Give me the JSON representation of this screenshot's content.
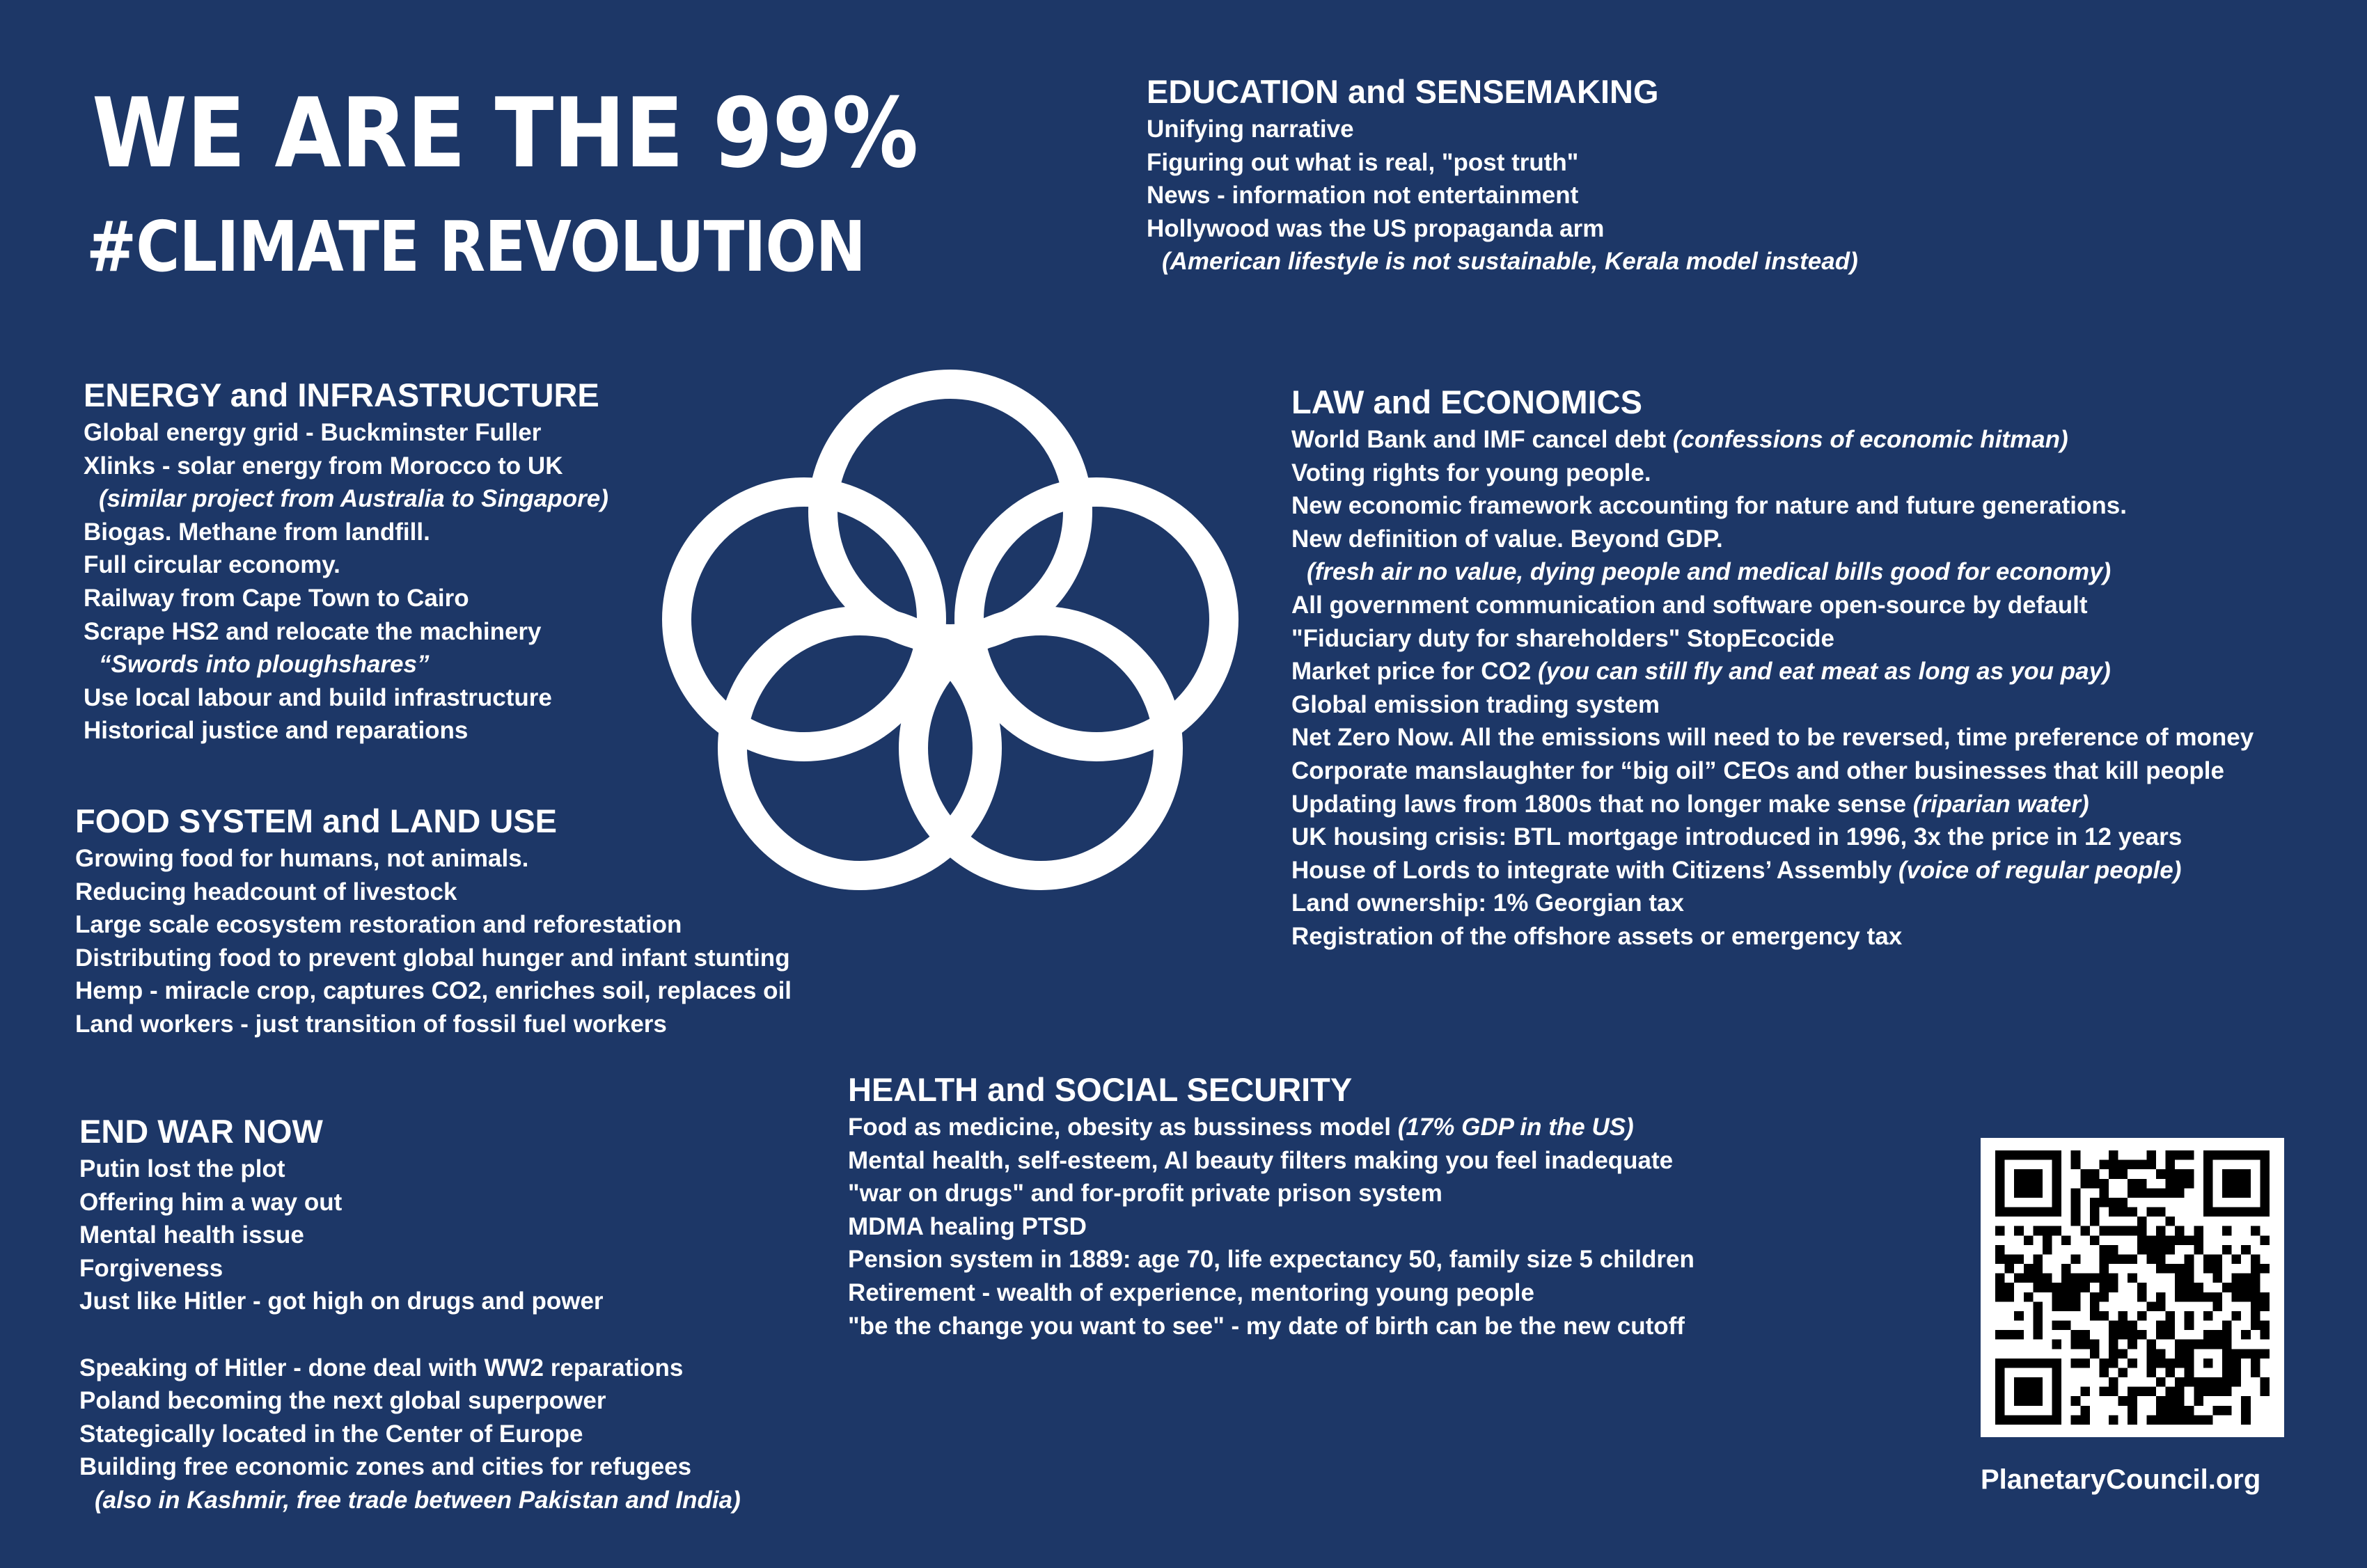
{
  "headline": {
    "line1": "WE ARE THE 99%",
    "line2": "#CLIMATE REVOLUTION"
  },
  "colors": {
    "background": "#1d3767",
    "text": "#ffffff",
    "logo": "#ffffff"
  },
  "logo_icon": "five-interlocking-rings-icon",
  "qr_icon": "qr-code-icon",
  "sections": {
    "education": {
      "title": "EDUCATION and SENSEMAKING",
      "items": [
        {
          "text": "Unifying narrative",
          "italic": ""
        },
        {
          "text": "Figuring out what is real, \"post truth\"",
          "italic": ""
        },
        {
          "text": "News - information not entertainment",
          "italic": ""
        },
        {
          "text": "Hollywood was the US propaganda arm",
          "italic": ""
        },
        {
          "text": "",
          "italic": "(American lifestyle is not sustainable, Kerala model instead)"
        }
      ]
    },
    "energy": {
      "title": "ENERGY and INFRASTRUCTURE",
      "items": [
        {
          "text": "Global energy grid - Buckminster Fuller",
          "italic": ""
        },
        {
          "text": "Xlinks - solar energy from Morocco to UK",
          "italic": ""
        },
        {
          "text": "",
          "italic": "(similar project from Australia to Singapore)"
        },
        {
          "text": "Biogas. Methane from landfill.",
          "italic": ""
        },
        {
          "text": "Full circular economy.",
          "italic": ""
        },
        {
          "text": "Railway from Cape Town to Cairo",
          "italic": ""
        },
        {
          "text": "Scrape HS2 and relocate the machinery",
          "italic": ""
        },
        {
          "text": "",
          "italic": "“Swords into ploughshares”"
        },
        {
          "text": "Use local labour and build infrastructure",
          "italic": ""
        },
        {
          "text": "Historical justice and reparations",
          "italic": ""
        }
      ]
    },
    "law": {
      "title": "LAW and ECONOMICS",
      "items": [
        {
          "text": "World Bank and IMF cancel debt ",
          "italic": "(confessions of economic hitman)"
        },
        {
          "text": "Voting rights for young people.",
          "italic": ""
        },
        {
          "text": "New economic framework accounting for nature and future generations.",
          "italic": ""
        },
        {
          "text": "New definition of value. Beyond GDP.",
          "italic": ""
        },
        {
          "text": "",
          "italic": "(fresh air no value, dying people and medical bills good for economy)"
        },
        {
          "text": "All government communication and software open-source by default",
          "italic": ""
        },
        {
          "text": "\"Fiduciary duty for shareholders\" StopEcocide",
          "italic": ""
        },
        {
          "text": "Market price for CO2 ",
          "italic": "(you can still fly and eat meat as long as you pay)"
        },
        {
          "text": "Global emission trading system",
          "italic": ""
        },
        {
          "text": "Net Zero Now. All the emissions will need to be reversed, time preference of money",
          "italic": ""
        },
        {
          "text": "Corporate manslaughter for “big oil” CEOs and other businesses that kill people",
          "italic": ""
        },
        {
          "text": "Updating laws from 1800s that no longer make sense ",
          "italic": "(riparian water)"
        },
        {
          "text": "UK housing crisis: BTL mortgage introduced in 1996, 3x the price in 12 years",
          "italic": ""
        },
        {
          "text": "House of Lords to integrate with Citizens’ Assembly ",
          "italic": "(voice of regular people)"
        },
        {
          "text": "Land ownership: 1% Georgian tax",
          "italic": ""
        },
        {
          "text": "Registration of the offshore assets or emergency tax",
          "italic": ""
        }
      ]
    },
    "food": {
      "title": "FOOD SYSTEM and LAND USE",
      "items": [
        {
          "text": "Growing food for humans, not animals.",
          "italic": ""
        },
        {
          "text": "Reducing headcount of livestock",
          "italic": ""
        },
        {
          "text": "Large scale ecosystem restoration and reforestation",
          "italic": ""
        },
        {
          "text": "Distributing food to prevent global hunger and infant stunting",
          "italic": ""
        },
        {
          "text": "Hemp - miracle crop, captures CO2, enriches soil, replaces oil",
          "italic": ""
        },
        {
          "text": "Land workers - just transition of fossil fuel workers",
          "italic": ""
        }
      ]
    },
    "war": {
      "title": "END WAR NOW",
      "items": [
        {
          "text": "Putin lost the plot",
          "italic": ""
        },
        {
          "text": "Offering him a way out",
          "italic": ""
        },
        {
          "text": "Mental health issue",
          "italic": ""
        },
        {
          "text": "Forgiveness",
          "italic": ""
        },
        {
          "text": "Just like Hitler - got high on drugs and power",
          "italic": ""
        },
        {
          "text": "",
          "italic": ""
        },
        {
          "text": "Speaking of Hitler - done deal with WW2 reparations",
          "italic": ""
        },
        {
          "text": "Poland becoming the next global superpower",
          "italic": ""
        },
        {
          "text": "Stategically located in the Center of Europe",
          "italic": ""
        },
        {
          "text": "Building free economic zones and cities for refugees",
          "italic": ""
        },
        {
          "text": "",
          "italic": "(also in Kashmir, free trade between Pakistan and India)"
        }
      ]
    },
    "health": {
      "title": "HEALTH and SOCIAL SECURITY",
      "items": [
        {
          "text": "Food as medicine, obesity as bussiness model ",
          "italic": "(17% GDP in the US)"
        },
        {
          "text": "Mental health, self-esteem, AI beauty filters making you feel inadequate",
          "italic": ""
        },
        {
          "text": "\"war on drugs\" and for-profit private prison system",
          "italic": ""
        },
        {
          "text": "MDMA healing PTSD",
          "italic": ""
        },
        {
          "text": "Pension system in 1889: age 70, life expectancy 50, family size 5 children",
          "italic": ""
        },
        {
          "text": "Retirement - wealth of experience, mentoring young people",
          "italic": ""
        },
        {
          "text": "\"be the change you want to see\" - my date of birth can be the new cutoff",
          "italic": ""
        }
      ]
    }
  },
  "footer": {
    "website": "PlanetaryCouncil.org"
  }
}
